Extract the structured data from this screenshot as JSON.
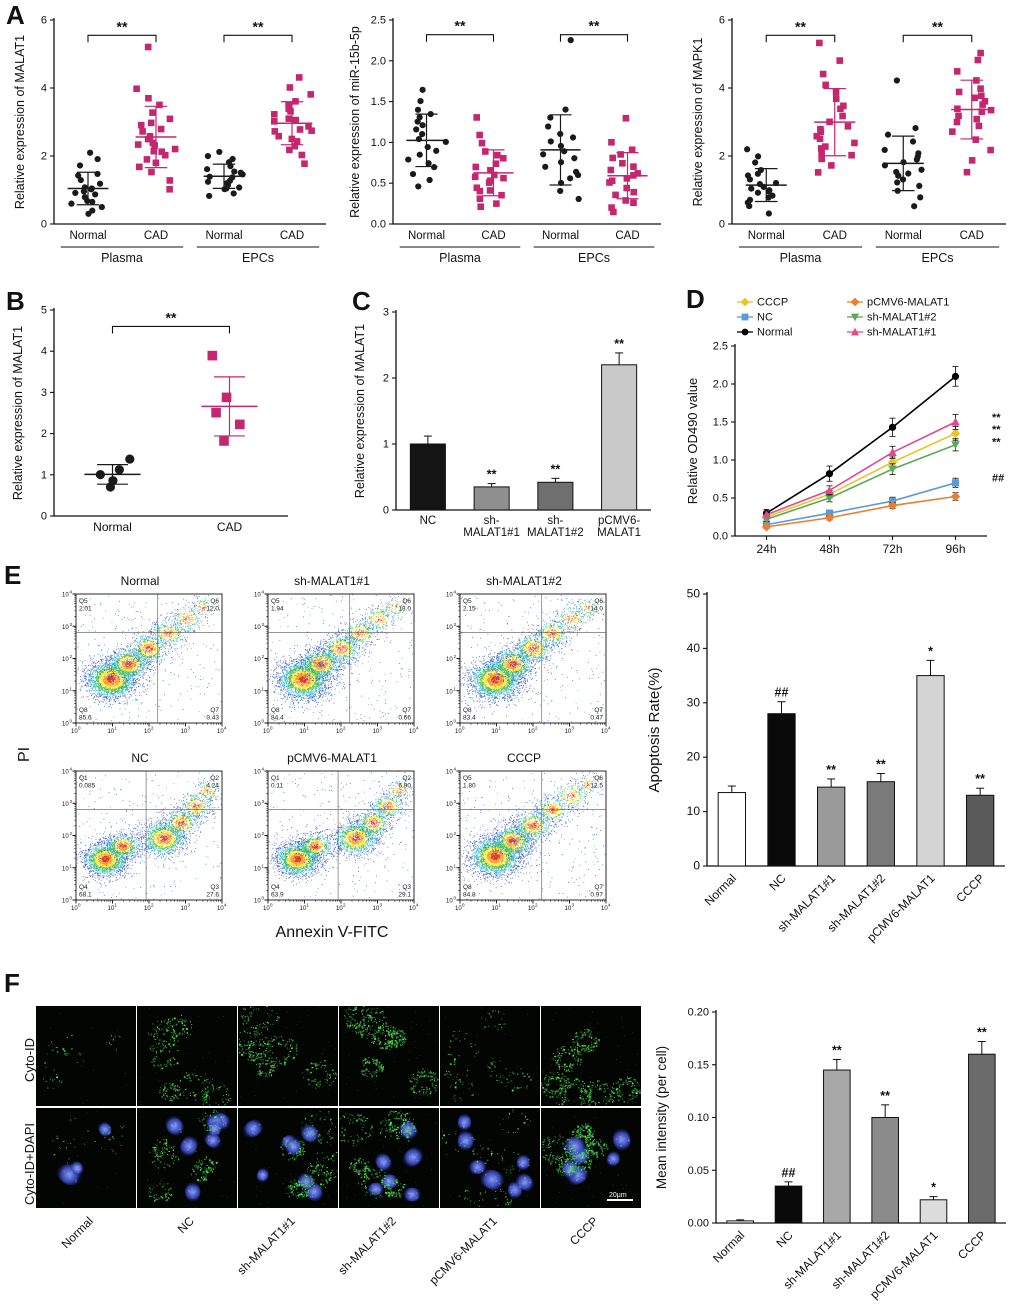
{
  "panel_labels": {
    "A": "A",
    "B": "B",
    "C": "C",
    "D": "D",
    "E": "E",
    "F": "F"
  },
  "colors": {
    "normal_points": "#1a1a1a",
    "cad_points": "#C4276F"
  },
  "chart_data": [
    {
      "id": "A1",
      "type": "scatter",
      "ylabel": "Relative expression of MALAT1",
      "ylim": [
        0,
        6
      ],
      "yticks": [
        0,
        2,
        4,
        6
      ],
      "ydec": 0,
      "seed": 11,
      "groups": [
        {
          "label": "Normal",
          "marker": "circle",
          "color": "#1a1a1a",
          "values": [
            0.3,
            0.4,
            0.5,
            0.6,
            0.65,
            0.7,
            0.8,
            0.85,
            0.9,
            0.95,
            1.0,
            1.05,
            1.1,
            1.2,
            1.3,
            1.4,
            1.5,
            1.7,
            1.9,
            2.1
          ]
        },
        {
          "label": "CAD",
          "marker": "square",
          "color": "#C4276F",
          "values": [
            1.0,
            1.3,
            1.5,
            1.7,
            1.8,
            1.9,
            2.0,
            2.1,
            2.15,
            2.2,
            2.3,
            2.35,
            2.4,
            2.5,
            2.6,
            2.7,
            2.8,
            2.9,
            3.0,
            3.1,
            3.3,
            3.5,
            3.7,
            4.0,
            5.2
          ]
        },
        {
          "label": "Normal",
          "marker": "circle",
          "color": "#1a1a1a",
          "values": [
            0.8,
            0.9,
            1.0,
            1.05,
            1.1,
            1.15,
            1.2,
            1.25,
            1.3,
            1.35,
            1.4,
            1.45,
            1.5,
            1.55,
            1.6,
            1.7,
            1.8,
            1.9,
            2.0,
            2.1
          ]
        },
        {
          "label": "CAD",
          "marker": "square",
          "color": "#C4276F",
          "values": [
            1.8,
            2.0,
            2.2,
            2.3,
            2.4,
            2.5,
            2.6,
            2.7,
            2.75,
            2.8,
            2.9,
            3.0,
            3.05,
            3.1,
            3.2,
            3.3,
            3.4,
            3.5,
            3.6,
            3.8,
            4.0,
            4.3
          ]
        }
      ],
      "brackets": [
        {
          "from": 0,
          "to": 1,
          "label": "**",
          "y": 5.55
        },
        {
          "from": 2,
          "to": 3,
          "label": "**",
          "y": 5.55
        }
      ],
      "group_brackets": [
        {
          "from": 0,
          "to": 1,
          "label": "Plasma"
        },
        {
          "from": 2,
          "to": 3,
          "label": "EPCs"
        }
      ]
    },
    {
      "id": "A2",
      "type": "scatter",
      "ylabel": "Relative expression of miR-15b-5p",
      "ylim": [
        0,
        2.5
      ],
      "yticks": [
        0,
        0.5,
        1.0,
        1.5,
        2.0,
        2.5
      ],
      "ydec": 1,
      "seed": 12,
      "groups": [
        {
          "label": "Normal",
          "marker": "circle",
          "color": "#1a1a1a",
          "values": [
            0.45,
            0.55,
            0.6,
            0.7,
            0.75,
            0.8,
            0.85,
            0.9,
            0.95,
            1.0,
            1.05,
            1.1,
            1.15,
            1.2,
            1.25,
            1.3,
            1.35,
            1.4,
            1.5,
            1.65
          ]
        },
        {
          "label": "CAD",
          "marker": "square",
          "color": "#C4276F",
          "values": [
            0.2,
            0.25,
            0.3,
            0.35,
            0.4,
            0.42,
            0.45,
            0.5,
            0.52,
            0.55,
            0.58,
            0.6,
            0.65,
            0.7,
            0.75,
            0.8,
            0.85,
            0.9,
            1.0,
            1.1,
            1.3
          ]
        },
        {
          "label": "Normal",
          "marker": "circle",
          "color": "#1a1a1a",
          "values": [
            0.3,
            0.4,
            0.5,
            0.55,
            0.6,
            0.65,
            0.7,
            0.75,
            0.8,
            0.85,
            0.9,
            0.95,
            1.0,
            1.05,
            1.1,
            1.2,
            1.3,
            1.4,
            2.25
          ]
        },
        {
          "label": "CAD",
          "marker": "square",
          "color": "#C4276F",
          "values": [
            0.15,
            0.2,
            0.25,
            0.3,
            0.35,
            0.4,
            0.45,
            0.5,
            0.52,
            0.55,
            0.6,
            0.62,
            0.65,
            0.7,
            0.75,
            0.8,
            0.85,
            0.9,
            1.0,
            1.3
          ]
        }
      ],
      "brackets": [
        {
          "from": 0,
          "to": 1,
          "label": "**",
          "y": 2.32
        },
        {
          "from": 2,
          "to": 3,
          "label": "**",
          "y": 2.32
        }
      ],
      "group_brackets": [
        {
          "from": 0,
          "to": 1,
          "label": "Plasma"
        },
        {
          "from": 2,
          "to": 3,
          "label": "EPCs"
        }
      ]
    },
    {
      "id": "A3",
      "type": "scatter",
      "ylabel": "Relative expression of MAPK1",
      "ylim": [
        0,
        6
      ],
      "yticks": [
        0,
        2,
        4,
        6
      ],
      "ydec": 0,
      "seed": 13,
      "groups": [
        {
          "label": "Normal",
          "marker": "circle",
          "color": "#1a1a1a",
          "values": [
            0.3,
            0.5,
            0.6,
            0.7,
            0.8,
            0.85,
            0.9,
            0.95,
            1.0,
            1.05,
            1.1,
            1.15,
            1.2,
            1.3,
            1.4,
            1.5,
            1.6,
            1.8,
            2.0,
            2.2
          ]
        },
        {
          "label": "CAD",
          "marker": "square",
          "color": "#C4276F",
          "values": [
            1.5,
            1.7,
            1.9,
            2.0,
            2.1,
            2.2,
            2.3,
            2.4,
            2.5,
            2.6,
            2.7,
            2.8,
            2.9,
            3.0,
            3.2,
            3.4,
            3.5,
            3.7,
            3.9,
            4.1,
            4.4,
            4.8,
            5.3
          ]
        },
        {
          "label": "Normal",
          "marker": "circle",
          "color": "#1a1a1a",
          "values": [
            0.5,
            0.8,
            1.0,
            1.1,
            1.2,
            1.3,
            1.4,
            1.5,
            1.55,
            1.6,
            1.7,
            1.8,
            1.9,
            2.0,
            2.1,
            2.2,
            2.4,
            2.6,
            2.8,
            4.2
          ]
        },
        {
          "label": "CAD",
          "marker": "square",
          "color": "#C4276F",
          "values": [
            1.5,
            1.9,
            2.2,
            2.5,
            2.7,
            2.9,
            3.0,
            3.1,
            3.2,
            3.3,
            3.35,
            3.4,
            3.5,
            3.6,
            3.7,
            3.8,
            3.9,
            4.0,
            4.2,
            4.5,
            4.8,
            5.0
          ]
        }
      ],
      "brackets": [
        {
          "from": 0,
          "to": 1,
          "label": "**",
          "y": 5.55
        },
        {
          "from": 2,
          "to": 3,
          "label": "**",
          "y": 5.55
        }
      ],
      "group_brackets": [
        {
          "from": 0,
          "to": 1,
          "label": "Plasma"
        },
        {
          "from": 2,
          "to": 3,
          "label": "EPCs"
        }
      ]
    },
    {
      "id": "B",
      "type": "scatter",
      "ylabel": "Relative expression of MALAT1",
      "ylim": [
        0,
        5
      ],
      "yticks": [
        0,
        1,
        2,
        3,
        4,
        5
      ],
      "ydec": 0,
      "seed": 14,
      "groups": [
        {
          "label": "Normal",
          "marker": "circle",
          "color": "#1a1a1a",
          "values": [
            0.7,
            0.85,
            1.0,
            1.1,
            1.4
          ]
        },
        {
          "label": "CAD",
          "marker": "square",
          "color": "#C4276F",
          "values": [
            1.8,
            2.2,
            2.5,
            2.9,
            3.9
          ]
        }
      ],
      "brackets": [
        {
          "from": 0,
          "to": 1,
          "label": "**",
          "y": 4.6
        }
      ],
      "group_brackets": []
    },
    {
      "id": "C",
      "type": "bar",
      "ylabel": "Relative expression of MALAT1",
      "ylim": [
        0,
        3
      ],
      "yticks": [
        0,
        1,
        2,
        3
      ],
      "ydec": 0,
      "categories": [
        "NC",
        "sh-\nMALAT1#1",
        "sh-\nMALAT1#2",
        "pCMV6-\nMALAT1"
      ],
      "values": [
        1.0,
        0.35,
        0.42,
        2.2
      ],
      "errors": [
        0.12,
        0.05,
        0.06,
        0.18
      ],
      "colors": [
        "#141414",
        "#8f8f8f",
        "#6f6f6f",
        "#c9c9c9"
      ],
      "sig": [
        "",
        "**",
        "**",
        "**"
      ]
    },
    {
      "id": "D",
      "type": "line",
      "ylabel": "Relative OD490 value",
      "ylim": [
        0,
        2.5
      ],
      "yticks": [
        0,
        0.5,
        1.0,
        1.5,
        2.0,
        2.5
      ],
      "ydec": 1,
      "xticklabels": [
        "24h",
        "48h",
        "72h",
        "96h"
      ],
      "series": [
        {
          "name": "CCCP",
          "color": "#E8C62B",
          "marker": "diamond",
          "values": [
            0.25,
            0.55,
            0.97,
            1.35
          ],
          "errors": [
            0.04,
            0.05,
            0.07,
            0.09
          ]
        },
        {
          "name": "NC",
          "color": "#5B9BD5",
          "marker": "square",
          "values": [
            0.15,
            0.3,
            0.46,
            0.7
          ],
          "errors": [
            0.03,
            0.04,
            0.05,
            0.06
          ]
        },
        {
          "name": "Normal",
          "color": "#000000",
          "marker": "circle",
          "values": [
            0.3,
            0.82,
            1.43,
            2.1
          ],
          "errors": [
            0.05,
            0.1,
            0.12,
            0.13
          ]
        },
        {
          "name": "pCMV6-MALAT1",
          "color": "#ED7D31",
          "marker": "diamond",
          "values": [
            0.12,
            0.24,
            0.4,
            0.52
          ],
          "errors": [
            0.02,
            0.03,
            0.04,
            0.05
          ]
        },
        {
          "name": "sh-MALAT1#2",
          "color": "#5BA85B",
          "marker": "tri-down",
          "values": [
            0.22,
            0.5,
            0.88,
            1.2
          ],
          "errors": [
            0.03,
            0.05,
            0.07,
            0.08
          ]
        },
        {
          "name": "sh-MALAT1#1",
          "color": "#E2498A",
          "marker": "tri-up",
          "values": [
            0.28,
            0.6,
            1.1,
            1.5
          ],
          "errors": [
            0.04,
            0.06,
            0.08,
            0.1
          ]
        }
      ],
      "legend_rows": [
        [
          0,
          3
        ],
        [
          1,
          4
        ],
        [
          2,
          5
        ]
      ],
      "annotations": [
        {
          "text": "**",
          "y": 1.56
        },
        {
          "text": "**",
          "y": 1.4
        },
        {
          "text": "**",
          "y": 1.24
        },
        {
          "text": "##",
          "y": 0.76
        }
      ]
    },
    {
      "id": "E_flow",
      "type": "flow_grid",
      "xlabel": "Annexin V-FITC",
      "ylabel": "PI",
      "tick_exponents": [
        "0",
        "1",
        "2",
        "3",
        "4"
      ],
      "plots": [
        {
          "title": "Normal",
          "profile": "viable",
          "seed": 21,
          "quadrants": [
            [
              "Q5",
              "2.01"
            ],
            [
              "Q6",
              "12.0"
            ],
            [
              "Q8",
              "85.6"
            ],
            [
              "Q7",
              "0.43"
            ]
          ]
        },
        {
          "title": "sh-MALAT1#1",
          "profile": "viable",
          "seed": 22,
          "quadrants": [
            [
              "Q5",
              "1.94"
            ],
            [
              "Q6",
              "13.0"
            ],
            [
              "Q8",
              "84.4"
            ],
            [
              "Q7",
              "0.66"
            ]
          ]
        },
        {
          "title": "sh-MALAT1#2",
          "profile": "viable",
          "seed": 23,
          "quadrants": [
            [
              "Q5",
              "2.15"
            ],
            [
              "Q6",
              "14.0"
            ],
            [
              "Q8",
              "83.4"
            ],
            [
              "Q7",
              "0.47"
            ]
          ]
        },
        {
          "title": "NC",
          "profile": "apoptotic",
          "seed": 24,
          "quadrants": [
            [
              "Q1",
              "0.085"
            ],
            [
              "Q2",
              "4.24"
            ],
            [
              "Q4",
              "68.1"
            ],
            [
              "Q3",
              "27.6"
            ]
          ]
        },
        {
          "title": "pCMV6-MALAT1",
          "profile": "apoptotic",
          "seed": 25,
          "quadrants": [
            [
              "Q1",
              "0.11"
            ],
            [
              "Q2",
              "6.90"
            ],
            [
              "Q4",
              "63.9"
            ],
            [
              "Q3",
              "29.1"
            ]
          ]
        },
        {
          "title": "CCCP",
          "profile": "viable",
          "seed": 26,
          "quadrants": [
            [
              "Q5",
              "1.80"
            ],
            [
              "Q6",
              "12.5"
            ],
            [
              "Q8",
              "84.8"
            ],
            [
              "Q7",
              "0.97"
            ]
          ]
        }
      ]
    },
    {
      "id": "E_bar",
      "type": "bar",
      "ylabel": "Apoptosis Rate(%)",
      "ylim": [
        0,
        50
      ],
      "yticks": [
        0,
        10,
        20,
        30,
        40,
        50
      ],
      "ydec": 0,
      "categories": [
        "Normal",
        "NC",
        "sh-MALAT1#1",
        "sh-MALAT1#2",
        "pCMV6-MALAT1",
        "CCCP"
      ],
      "values": [
        13.5,
        28,
        14.5,
        15.5,
        35,
        13
      ],
      "errors": [
        1.2,
        2.2,
        1.5,
        1.5,
        2.8,
        1.3
      ],
      "colors": [
        "#ffffff",
        "#0a0a0a",
        "#9a9a9a",
        "#7a7a7a",
        "#d4d4d4",
        "#5a5a5a"
      ],
      "sig": [
        "",
        "##",
        "**",
        "**",
        "*",
        "**"
      ],
      "rotate_labels": true
    },
    {
      "id": "F_images",
      "type": "micro_grid",
      "rows": [
        "Cyto-ID",
        "Cyto-ID+DAPI"
      ],
      "columns": [
        "Normal",
        "NC",
        "sh-MALAT1#1",
        "sh-MALAT1#2",
        "pCMV6-MALAT1",
        "CCCP"
      ],
      "scale_bar": "20μm",
      "green_row1": [
        0.07,
        0.5,
        0.6,
        0.8,
        0.18,
        0.9
      ],
      "green_row2": [
        0.06,
        0.4,
        0.5,
        0.65,
        0.15,
        0.75
      ],
      "nuclei": [
        3,
        7,
        7,
        6,
        7,
        6
      ]
    },
    {
      "id": "F_bar",
      "type": "bar",
      "ylabel": "Mean intensity (per cell)",
      "ylim": [
        0,
        0.2
      ],
      "yticks": [
        0,
        0.05,
        0.1,
        0.15,
        0.2
      ],
      "ydec": 2,
      "categories": [
        "Normal",
        "NC",
        "sh-MALAT1#1",
        "sh-MALAT1#2",
        "pCMV6-MALAT1",
        "CCCP"
      ],
      "values": [
        0.002,
        0.035,
        0.145,
        0.1,
        0.022,
        0.16
      ],
      "errors": [
        0.001,
        0.004,
        0.01,
        0.012,
        0.003,
        0.012
      ],
      "colors": [
        "#ffffff",
        "#0a0a0a",
        "#a8a8a8",
        "#8b8b8b",
        "#dcdcdc",
        "#6b6b6b"
      ],
      "sig": [
        "",
        "##",
        "**",
        "**",
        "*",
        "**"
      ],
      "rotate_labels": true
    }
  ]
}
